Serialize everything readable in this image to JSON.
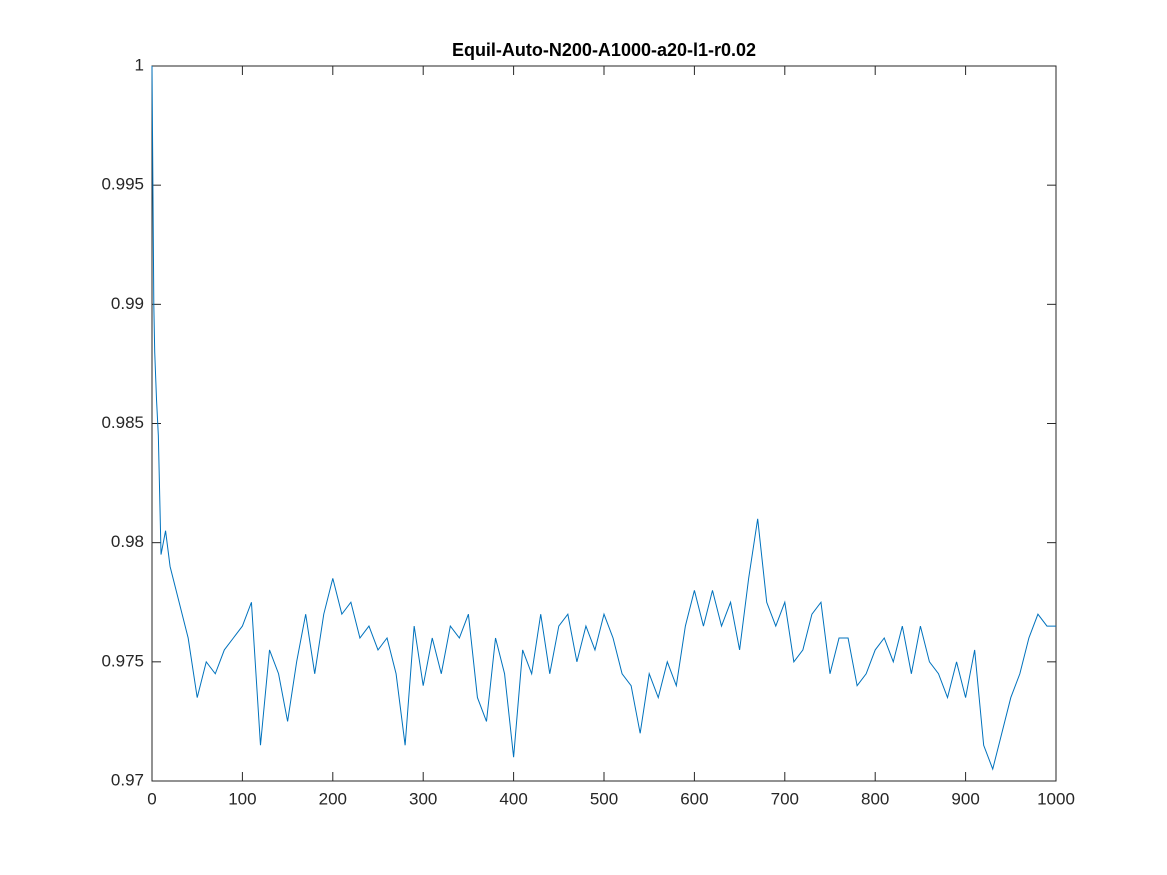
{
  "chart_data": {
    "type": "line",
    "title": "Equil-Auto-N200-A1000-a20-l1-r0.02",
    "x": [
      0,
      1,
      2,
      3,
      5,
      7,
      10,
      15,
      20,
      30,
      40,
      50,
      60,
      70,
      80,
      90,
      100,
      110,
      120,
      130,
      140,
      150,
      160,
      170,
      180,
      190,
      200,
      210,
      220,
      230,
      240,
      250,
      260,
      270,
      280,
      290,
      300,
      310,
      320,
      330,
      340,
      350,
      360,
      370,
      380,
      390,
      400,
      410,
      420,
      430,
      440,
      450,
      460,
      470,
      480,
      490,
      500,
      510,
      520,
      530,
      540,
      550,
      560,
      570,
      580,
      590,
      600,
      610,
      620,
      630,
      640,
      650,
      660,
      670,
      680,
      690,
      700,
      710,
      720,
      730,
      740,
      750,
      760,
      770,
      780,
      790,
      800,
      810,
      820,
      830,
      840,
      850,
      860,
      870,
      880,
      890,
      900,
      910,
      920,
      930,
      940,
      950,
      960,
      970,
      980,
      990,
      1000
    ],
    "values": [
      1.0,
      0.995,
      0.99,
      0.988,
      0.986,
      0.9845,
      0.9795,
      0.9805,
      0.979,
      0.9775,
      0.976,
      0.9735,
      0.975,
      0.9745,
      0.9755,
      0.976,
      0.9765,
      0.9775,
      0.9715,
      0.9755,
      0.9745,
      0.9725,
      0.975,
      0.977,
      0.9745,
      0.977,
      0.9785,
      0.977,
      0.9775,
      0.976,
      0.9765,
      0.9755,
      0.976,
      0.9745,
      0.9715,
      0.9765,
      0.974,
      0.976,
      0.9745,
      0.9765,
      0.976,
      0.977,
      0.9735,
      0.9725,
      0.976,
      0.9745,
      0.971,
      0.9755,
      0.9745,
      0.977,
      0.9745,
      0.9765,
      0.977,
      0.975,
      0.9765,
      0.9755,
      0.977,
      0.976,
      0.9745,
      0.974,
      0.972,
      0.9745,
      0.9735,
      0.975,
      0.974,
      0.9765,
      0.978,
      0.9765,
      0.978,
      0.9765,
      0.9775,
      0.9755,
      0.9785,
      0.981,
      0.9775,
      0.9765,
      0.9775,
      0.975,
      0.9755,
      0.977,
      0.9775,
      0.9745,
      0.976,
      0.976,
      0.974,
      0.9745,
      0.9755,
      0.976,
      0.975,
      0.9765,
      0.9745,
      0.9765,
      0.975,
      0.9745,
      0.9735,
      0.975,
      0.9735,
      0.9755,
      0.9715,
      0.9705,
      0.972,
      0.9735,
      0.9745,
      0.976,
      0.977,
      0.9765,
      0.9765
    ],
    "color": "#0072bd",
    "xlim": [
      0,
      1000
    ],
    "xticks": [
      0,
      100,
      200,
      300,
      400,
      500,
      600,
      700,
      800,
      900,
      1000
    ],
    "ylim": [
      0.97,
      1
    ],
    "yticks": [
      0.97,
      0.975,
      0.98,
      0.985,
      0.99,
      0.995,
      1
    ]
  }
}
